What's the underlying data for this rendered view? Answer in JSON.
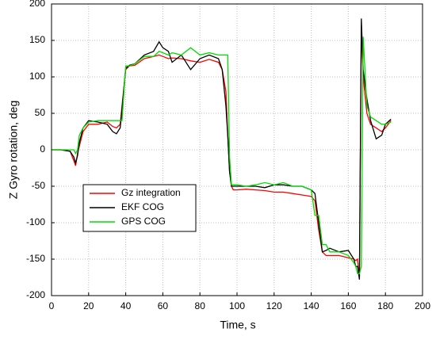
{
  "chart_data": {
    "type": "line",
    "x_label": "Time, s",
    "y_label": "Z Gyro rotation, deg",
    "x": [
      0,
      5,
      10,
      12,
      13,
      14,
      15,
      17,
      20,
      25,
      30,
      33,
      35,
      37,
      38,
      40,
      42,
      45,
      50,
      55,
      58,
      60,
      63,
      65,
      70,
      75,
      80,
      85,
      90,
      92,
      94,
      95,
      96,
      97,
      98,
      100,
      105,
      110,
      115,
      120,
      125,
      130,
      135,
      140,
      142,
      144,
      146,
      148,
      150,
      155,
      160,
      163,
      164,
      165,
      166,
      167,
      168,
      170,
      172,
      175,
      178,
      180,
      183
    ],
    "series": [
      {
        "name": "Gz integration",
        "color": "#ff0000",
        "values": [
          0,
          0,
          -2,
          -15,
          -22,
          -5,
          5,
          25,
          35,
          35,
          38,
          32,
          30,
          35,
          60,
          110,
          115,
          116,
          125,
          128,
          130,
          128,
          125,
          126,
          125,
          122,
          120,
          124,
          120,
          110,
          80,
          20,
          -30,
          -50,
          -55,
          -55,
          -54,
          -55,
          -56,
          -58,
          -58,
          -60,
          -62,
          -64,
          -70,
          -110,
          -140,
          -145,
          -145,
          -145,
          -148,
          -150,
          -152,
          -150,
          -175,
          170,
          100,
          50,
          35,
          30,
          25,
          30,
          40
        ]
      },
      {
        "name": "EKF COG",
        "color": "#000000",
        "values": [
          0,
          0,
          -2,
          -10,
          -18,
          -8,
          10,
          30,
          40,
          38,
          35,
          25,
          22,
          30,
          55,
          112,
          116,
          118,
          130,
          135,
          148,
          140,
          135,
          120,
          130,
          110,
          125,
          130,
          125,
          110,
          60,
          20,
          -30,
          -50,
          -50,
          -50,
          -50,
          -50,
          -52,
          -48,
          -48,
          -50,
          -50,
          -55,
          -60,
          -100,
          -140,
          -138,
          -135,
          -140,
          -138,
          -150,
          -160,
          -160,
          -178,
          180,
          110,
          70,
          40,
          15,
          20,
          35,
          42
        ]
      },
      {
        "name": "GPS COG",
        "color": "#00dd00",
        "values": [
          0,
          0,
          0,
          0,
          -5,
          0,
          20,
          30,
          38,
          40,
          40,
          40,
          40,
          40,
          40,
          115,
          115,
          118,
          128,
          128,
          135,
          133,
          130,
          133,
          130,
          140,
          130,
          133,
          130,
          130,
          130,
          130,
          -10,
          -48,
          -48,
          -48,
          -50,
          -48,
          -45,
          -48,
          -45,
          -50,
          -50,
          -55,
          -90,
          -90,
          -130,
          -130,
          -140,
          -140,
          -145,
          -155,
          -160,
          -170,
          -170,
          -160,
          155,
          60,
          45,
          40,
          35,
          35,
          38
        ]
      }
    ],
    "xlim": [
      0,
      200
    ],
    "xticks": [
      0,
      20,
      40,
      60,
      80,
      100,
      120,
      140,
      160,
      180,
      200
    ],
    "ylim": [
      -200,
      200
    ],
    "yticks": [
      -200,
      -150,
      -100,
      -50,
      0,
      50,
      100,
      150,
      200
    ],
    "grid": true,
    "legend": "lower left"
  }
}
